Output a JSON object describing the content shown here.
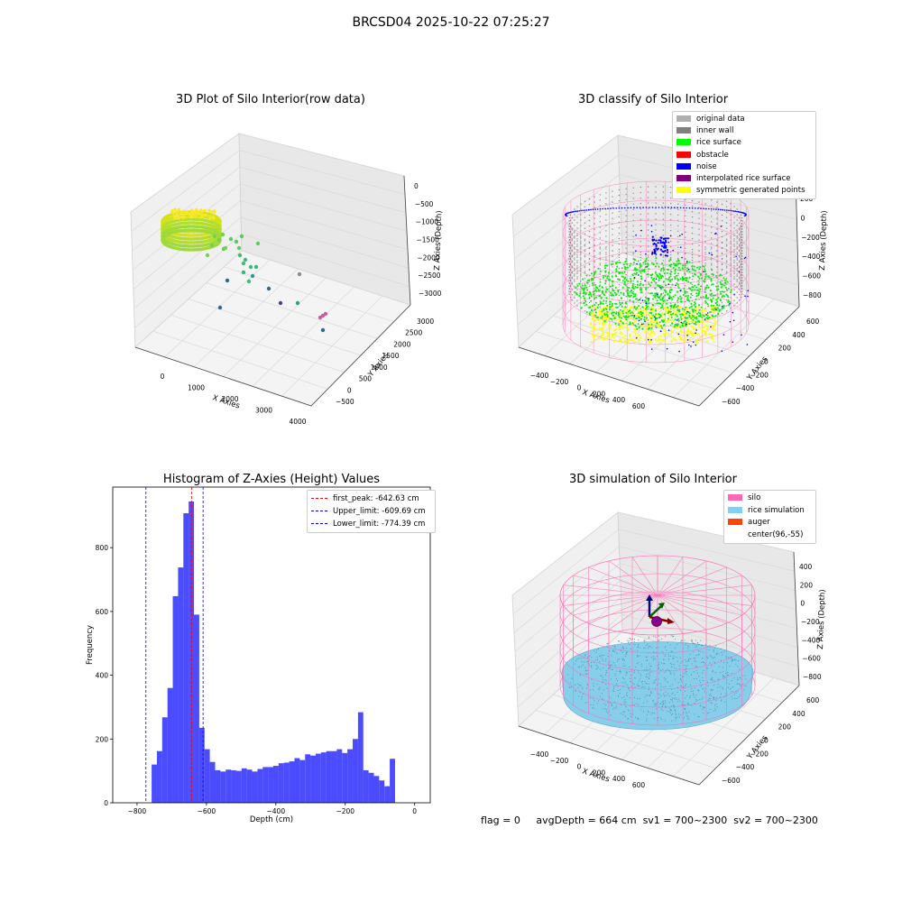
{
  "figure": {
    "suptitle": "BRCSD04 2025-10-22 07:25:27",
    "footer": {
      "flag": "flag = 0",
      "avg_depth": "avgDepth = 664 cm",
      "sv1": "sv1 = 700~2300",
      "sv2": "sv2 = 700~2300"
    }
  },
  "colors": {
    "silo_pink": "#ff69b4",
    "rice_blue": "#87ceeb",
    "auger": "#ff4500",
    "rice_green": "#00ff00",
    "noise_blue": "#0000ff",
    "inner_wall": "#808080",
    "hist_bar": "#0000ff",
    "peak_line": "#ff0000",
    "limit_line": "#0000ff"
  },
  "plot1": {
    "title": "3D Plot of Silo Interior(row data)",
    "xlabel": "X Axies",
    "ylabel": "Y Axies",
    "zlabel": "Z Axies (Depth)",
    "xticks": [
      "0",
      "1000",
      "2000",
      "3000",
      "4000"
    ],
    "yticks": [
      "−500",
      "0",
      "500",
      "1000",
      "1500",
      "2000",
      "2500",
      "3000"
    ],
    "zticks": [
      "0",
      "−500",
      "−1000",
      "−1500",
      "−2000",
      "−2500",
      "−3000"
    ]
  },
  "plot2": {
    "title": "3D classify of Silo Interior",
    "xlabel": "X Axies",
    "ylabel": "Y Axies",
    "zlabel": "Z Axies (Depth)",
    "xticks": [
      "−400",
      "−200",
      "0",
      "200",
      "400",
      "600"
    ],
    "yticks": [
      "−600",
      "−400",
      "−200",
      "0",
      "200",
      "400",
      "600"
    ],
    "zticks": [
      "200",
      "0",
      "−200",
      "−400",
      "−600",
      "−800"
    ],
    "legend": [
      {
        "label": "original data",
        "color": "#b0b0b0"
      },
      {
        "label": "inner wall",
        "color": "#808080"
      },
      {
        "label": "rice surface",
        "color": "#00ff00"
      },
      {
        "label": "obstacle",
        "color": "#ff0000"
      },
      {
        "label": "noise",
        "color": "#0000ff"
      },
      {
        "label": "interpolated rice surface",
        "color": "#800080"
      },
      {
        "label": "symmetric generated points",
        "color": "#ffff00"
      }
    ]
  },
  "plot4": {
    "title": "3D simulation of Silo Interior",
    "xlabel": "X Axies",
    "ylabel": "Y Axies",
    "zlabel": "Z Axies (Depth)",
    "xticks": [
      "−400",
      "−200",
      "0",
      "200",
      "400",
      "600"
    ],
    "yticks": [
      "−600",
      "−400",
      "−200",
      "0",
      "200",
      "400",
      "600"
    ],
    "zticks": [
      "400",
      "200",
      "0",
      "−200",
      "−400",
      "−600",
      "−800"
    ],
    "legend": [
      {
        "label": "silo",
        "color": "#ff69b4"
      },
      {
        "label": "rice simulation",
        "color": "#87ceeb"
      },
      {
        "label": "auger",
        "color": "#ff4500"
      },
      {
        "label": "center(96,-55)",
        "color": ""
      }
    ]
  },
  "chart_data": {
    "type": "bar",
    "title": "Histogram of Z-Axies (Height) Values",
    "xlabel": "Depth (cm)",
    "ylabel": "Frequency",
    "xlim": [
      -870,
      45
    ],
    "ylim": [
      0,
      990
    ],
    "xticks": [
      -800,
      -600,
      -400,
      -200,
      0
    ],
    "xtick_labels": [
      "−800",
      "−600",
      "−400",
      "−200",
      "0"
    ],
    "yticks": [
      0,
      200,
      400,
      600,
      800
    ],
    "yticks_labels": [
      "0",
      "200",
      "400",
      "600",
      "800"
    ],
    "bin_start": -758,
    "bin_width": 15.25,
    "values": [
      120,
      162,
      268,
      360,
      648,
      738,
      908,
      945,
      590,
      235,
      168,
      128,
      102,
      98,
      104,
      102,
      100,
      108,
      104,
      98,
      106,
      112,
      112,
      116,
      124,
      126,
      130,
      140,
      134,
      152,
      148,
      154,
      158,
      162,
      162,
      168,
      156,
      168,
      200,
      284,
      102,
      94,
      84,
      70,
      52,
      138
    ],
    "vlines": [
      {
        "name": "first_peak",
        "value": -642.63,
        "label": "first_peak: -642.63 cm",
        "color": "#ff0000"
      },
      {
        "name": "Upper_limit",
        "value": -609.69,
        "label": "Upper_limit: -609.69 cm",
        "color": "#0000ff"
      },
      {
        "name": "Lower_limit",
        "value": -774.39,
        "label": "Lower_limit: -774.39 cm",
        "color": "#0000ff"
      }
    ],
    "legend_position": "top-right"
  }
}
